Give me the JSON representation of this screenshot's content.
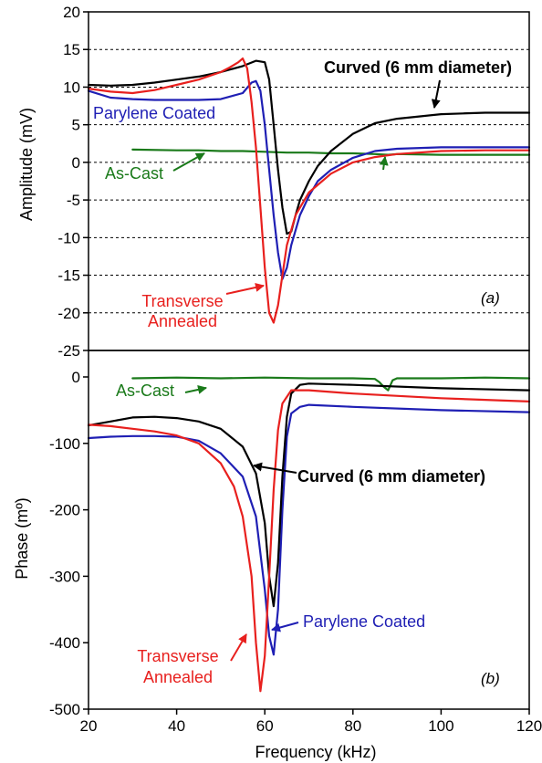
{
  "colors": {
    "as_cast": "#1a7a1a",
    "parylene": "#1f1fb4",
    "curved": "#000000",
    "transverse": "#e8201e"
  },
  "chart_data": [
    {
      "type": "line",
      "panel_label": "(a)",
      "xlabel": "",
      "ylabel": "Amplitude (mV)",
      "xlim": [
        20,
        120
      ],
      "ylim": [
        -25,
        20
      ],
      "y_ticks": [
        20,
        15,
        10,
        5,
        0,
        -5,
        -10,
        -15,
        -20,
        -25
      ],
      "grid": "horizontal dashed",
      "series": [
        {
          "key": "as_cast",
          "x": [
            30,
            40,
            45,
            50,
            55,
            60,
            65,
            70,
            75,
            80,
            85,
            88,
            90,
            100,
            110,
            120
          ],
          "y": [
            1.7,
            1.6,
            1.6,
            1.5,
            1.5,
            1.4,
            1.3,
            1.3,
            1.2,
            1.2,
            1.1,
            1.0,
            1.1,
            1.0,
            1.0,
            1.0
          ]
        },
        {
          "key": "parylene",
          "x": [
            20,
            25,
            30,
            35,
            40,
            45,
            50,
            55,
            57,
            58,
            59,
            60,
            61,
            62,
            63,
            64,
            65,
            66,
            68,
            70,
            72,
            75,
            80,
            85,
            90,
            100,
            110,
            120
          ],
          "y": [
            9.5,
            8.6,
            8.4,
            8.3,
            8.3,
            8.3,
            8.4,
            9.2,
            10.6,
            10.8,
            9.5,
            5,
            -1,
            -7,
            -12,
            -15.5,
            -14,
            -11,
            -7,
            -4.5,
            -2.5,
            -1,
            0.6,
            1.5,
            1.8,
            2.0,
            2.0,
            2.0
          ]
        },
        {
          "key": "curved",
          "x": [
            20,
            25,
            30,
            35,
            40,
            45,
            50,
            55,
            58,
            60,
            61,
            62,
            63,
            64,
            65,
            66,
            67,
            68,
            70,
            72,
            75,
            80,
            85,
            90,
            95,
            100,
            105,
            110,
            115,
            120
          ],
          "y": [
            10.3,
            10.2,
            10.3,
            10.6,
            11.0,
            11.4,
            12.0,
            12.8,
            13.5,
            13.3,
            11,
            5,
            -1,
            -6,
            -9.5,
            -9.2,
            -7,
            -5,
            -2.5,
            -0.5,
            1.5,
            3.8,
            5.2,
            5.8,
            6.1,
            6.4,
            6.5,
            6.6,
            6.6,
            6.6
          ]
        },
        {
          "key": "transverse",
          "x": [
            20,
            25,
            30,
            35,
            40,
            45,
            50,
            52,
            54,
            55,
            56,
            57,
            58,
            59,
            60,
            61,
            62,
            63,
            64,
            65,
            67,
            70,
            75,
            80,
            85,
            90,
            100,
            110,
            120
          ],
          "y": [
            9.8,
            9.4,
            9.2,
            9.6,
            10.3,
            11.0,
            12.0,
            12.6,
            13.3,
            13.8,
            12.5,
            8,
            2,
            -6,
            -14,
            -20,
            -21.3,
            -19,
            -15,
            -11,
            -7,
            -4,
            -1.5,
            0,
            0.7,
            1.1,
            1.5,
            1.6,
            1.6
          ]
        }
      ],
      "annotations": [
        {
          "key": "curved",
          "text": "Curved (6 mm diameter)",
          "bold": true
        },
        {
          "key": "parylene",
          "text": "Parylene Coated"
        },
        {
          "key": "as_cast",
          "text": "As-Cast"
        },
        {
          "key": "transverse",
          "text": "Transverse",
          "text2": "Annealed"
        }
      ]
    },
    {
      "type": "line",
      "panel_label": "(b)",
      "xlabel": "Frequency (kHz)",
      "ylabel": "Phase (mº)",
      "xlim": [
        20,
        120
      ],
      "ylim": [
        -500,
        0
      ],
      "x_ticks": [
        20,
        40,
        60,
        80,
        100,
        120
      ],
      "y_ticks": [
        0,
        -100,
        -200,
        -300,
        -400,
        -500
      ],
      "grid": "none",
      "series": [
        {
          "key": "as_cast",
          "x": [
            30,
            40,
            50,
            60,
            70,
            80,
            85,
            86,
            87,
            88,
            89,
            90,
            100,
            110,
            120
          ],
          "y": [
            -2,
            -1,
            -2,
            -1,
            -2,
            -2,
            -3,
            -8,
            -15,
            -20,
            -5,
            -2,
            -2,
            -1,
            -2
          ]
        },
        {
          "key": "parylene",
          "x": [
            20,
            25,
            30,
            35,
            40,
            45,
            50,
            55,
            58,
            60,
            61,
            62,
            63,
            64,
            65,
            66,
            68,
            70,
            80,
            100,
            120
          ],
          "y": [
            -92,
            -90,
            -89,
            -89,
            -90,
            -96,
            -115,
            -150,
            -210,
            -320,
            -390,
            -418,
            -350,
            -200,
            -90,
            -55,
            -45,
            -42,
            -45,
            -50,
            -53
          ]
        },
        {
          "key": "curved",
          "x": [
            20,
            25,
            30,
            35,
            40,
            45,
            50,
            55,
            58,
            60,
            61,
            62,
            63,
            64,
            65,
            66,
            68,
            70,
            80,
            100,
            120
          ],
          "y": [
            -73,
            -67,
            -61,
            -60,
            -62,
            -67,
            -78,
            -105,
            -145,
            -220,
            -300,
            -345,
            -280,
            -150,
            -60,
            -25,
            -12,
            -10,
            -12,
            -17,
            -20
          ]
        },
        {
          "key": "transverse",
          "x": [
            20,
            25,
            30,
            35,
            40,
            45,
            50,
            53,
            55,
            57,
            58,
            59,
            60,
            61,
            62,
            63,
            64,
            66,
            70,
            80,
            100,
            120
          ],
          "y": [
            -72,
            -74,
            -78,
            -82,
            -88,
            -100,
            -130,
            -165,
            -210,
            -300,
            -400,
            -473,
            -420,
            -300,
            -170,
            -80,
            -40,
            -20,
            -20,
            -25,
            -32,
            -37
          ]
        }
      ],
      "annotations": [
        {
          "key": "as_cast",
          "text": "As-Cast"
        },
        {
          "key": "curved",
          "text": "Curved (6 mm diameter)",
          "bold": true
        },
        {
          "key": "parylene",
          "text": "Parylene Coated"
        },
        {
          "key": "transverse",
          "text": "Transverse",
          "text2": "Annealed"
        }
      ]
    }
  ]
}
